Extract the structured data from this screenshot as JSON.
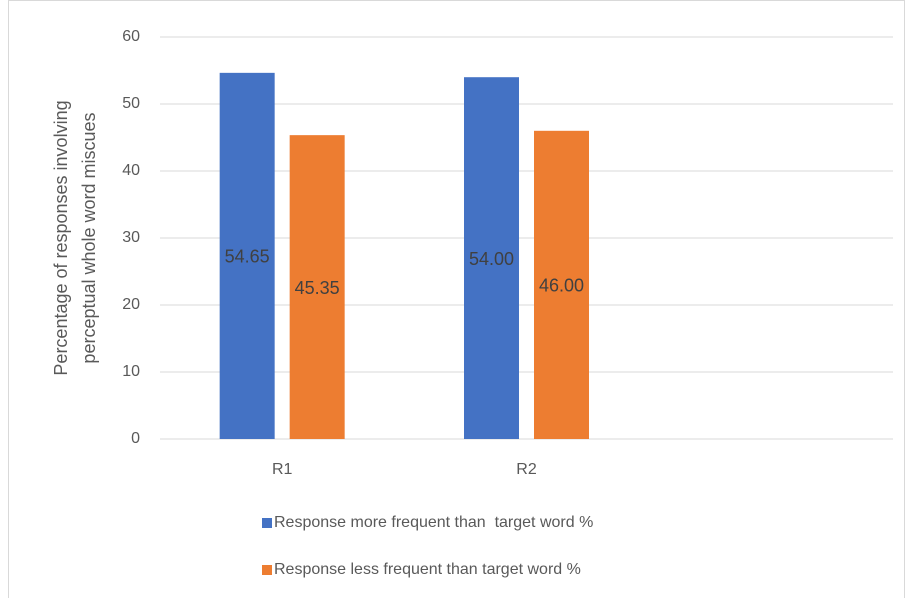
{
  "chart_data": {
    "type": "bar",
    "categories": [
      "R1",
      "R2",
      null
    ],
    "series": [
      {
        "name": "Response more frequent than  target word %",
        "color": "#4472c4",
        "values": [
          54.65,
          54,
          null
        ],
        "value_labels": [
          "54.65",
          "54.00",
          null
        ]
      },
      {
        "name": "Response less frequent than target word %",
        "color": "#ed7d31",
        "values": [
          45.35,
          46,
          null
        ],
        "value_labels": [
          "45.35",
          "46.00",
          null
        ]
      }
    ],
    "ylabel": [
      "Percentage of responses involving",
      "perceptual whole word miscues"
    ],
    "ylim": [
      0,
      60
    ],
    "yticks": [
      0,
      10,
      20,
      30,
      40,
      50,
      60
    ],
    "grid": true,
    "legend": "bottom"
  }
}
